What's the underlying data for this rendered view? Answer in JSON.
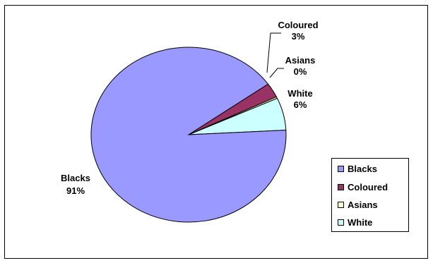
{
  "chart_data": {
    "type": "pie",
    "title": "",
    "slices": [
      {
        "label": "Blacks",
        "percent_label": "91%",
        "value": 91,
        "color": "#9999FF"
      },
      {
        "label": "Coloured",
        "percent_label": "3%",
        "value": 2.7,
        "color": "#993366"
      },
      {
        "label": "Asians",
        "percent_label": "0%",
        "value": 0.3,
        "color": "#FFFFCC"
      },
      {
        "label": "White",
        "percent_label": "6%",
        "value": 6,
        "color": "#CCFFFF"
      }
    ],
    "legend": {
      "position": "right",
      "entries": [
        "Blacks",
        "Coloured",
        "Asians",
        "White"
      ]
    }
  }
}
